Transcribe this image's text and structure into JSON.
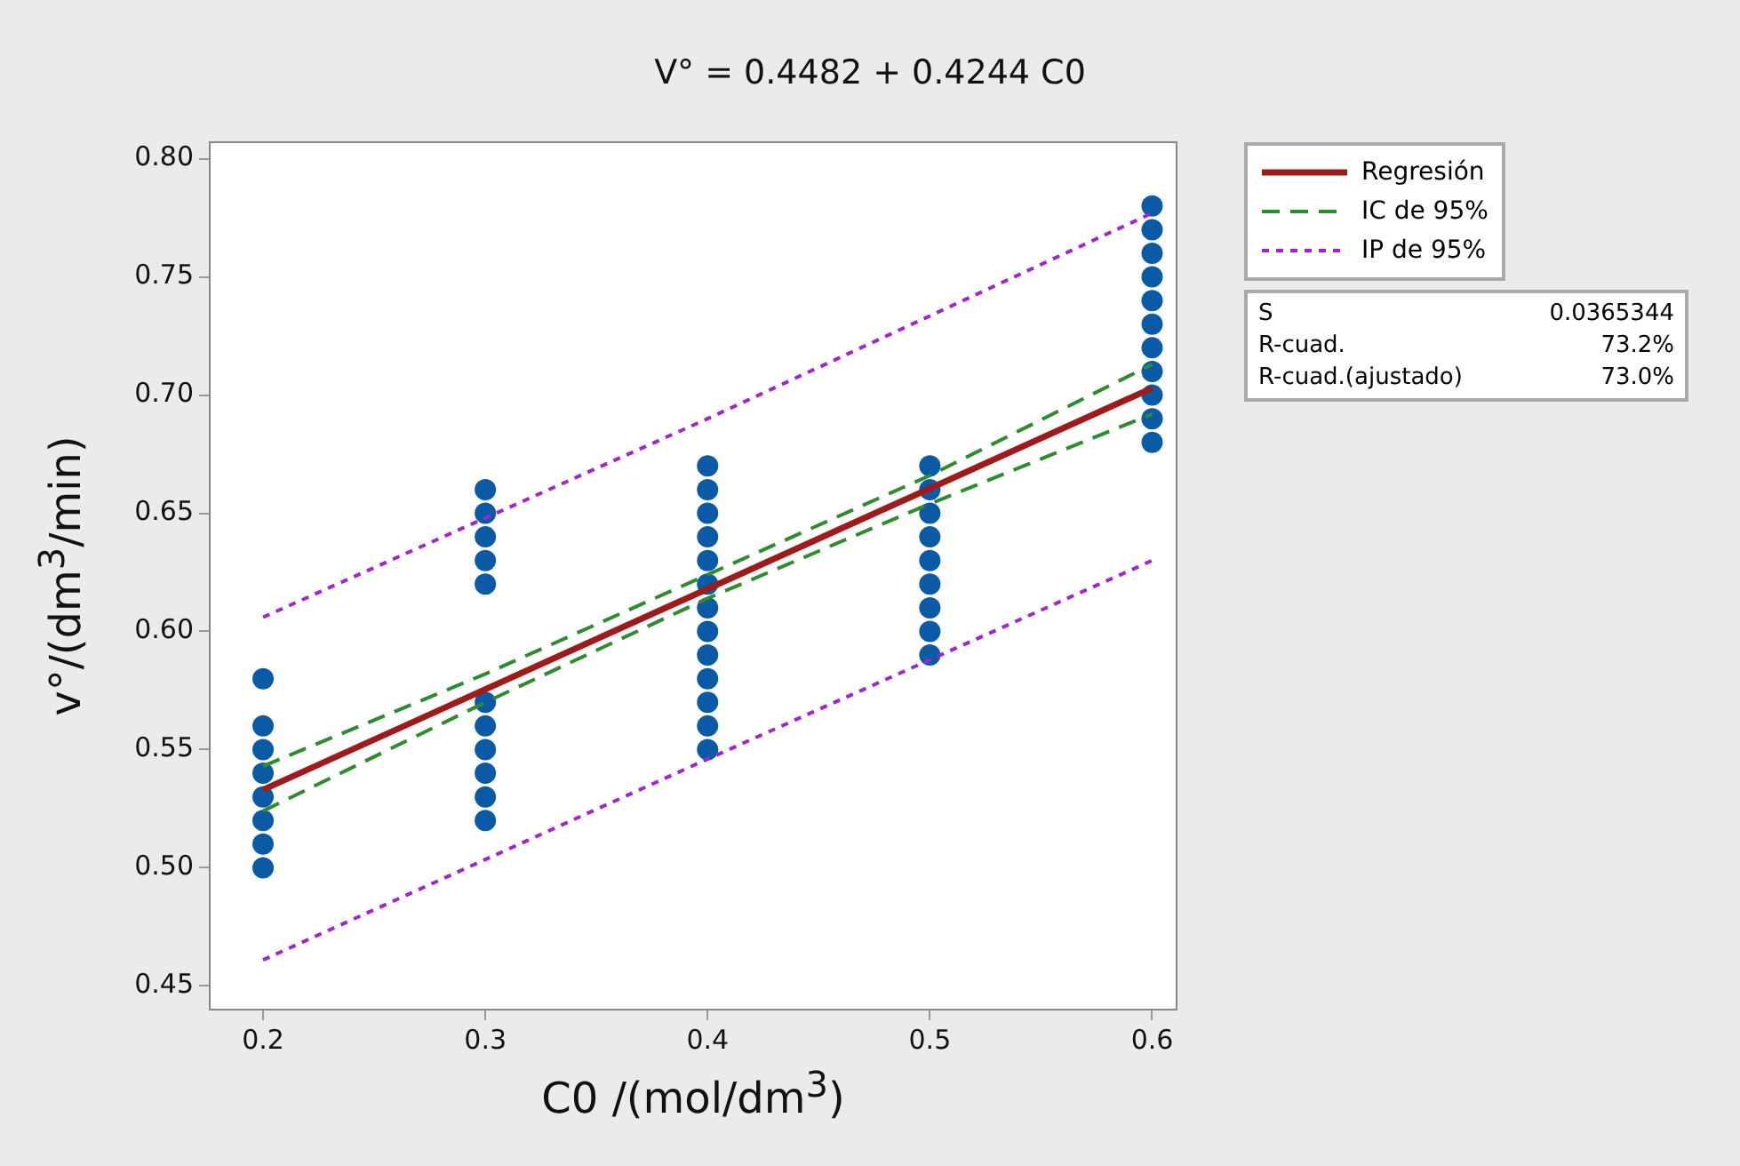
{
  "chart_data": {
    "type": "scatter",
    "title": "V° = 0.4482 + 0.4244 C0",
    "xlabel": "C0 /(mol/dm$^{3}$)",
    "ylabel": "v°/(dm$^{3}$/min)",
    "xlim": [
      0.176,
      0.611
    ],
    "xticks": [
      {
        "value": 0.2,
        "label": "0.2"
      },
      {
        "value": 0.3,
        "label": "0.3"
      },
      {
        "value": 0.4,
        "label": "0.4"
      },
      {
        "value": 0.5,
        "label": "0.5"
      },
      {
        "value": 0.6,
        "label": "0.6"
      }
    ],
    "ylim": [
      0.44,
      0.807
    ],
    "yticks": [
      {
        "value": 0.45,
        "label": "0.45"
      },
      {
        "value": 0.5,
        "label": "0.50"
      },
      {
        "value": 0.55,
        "label": "0.55"
      },
      {
        "value": 0.6,
        "label": "0.60"
      },
      {
        "value": 0.65,
        "label": "0.65"
      },
      {
        "value": 0.7,
        "label": "0.70"
      },
      {
        "value": 0.75,
        "label": "0.75"
      },
      {
        "value": 0.8,
        "label": "0.80"
      }
    ],
    "grid": false,
    "legend": "right",
    "series": [
      {
        "type": "scatter",
        "color": "#0b5aa6",
        "marker": "circle",
        "x": [
          0.2,
          0.2,
          0.2,
          0.2,
          0.2,
          0.2,
          0.2,
          0.2,
          0.3,
          0.3,
          0.3,
          0.3,
          0.3,
          0.3,
          0.3,
          0.3,
          0.3,
          0.3,
          0.3,
          0.4,
          0.4,
          0.4,
          0.4,
          0.4,
          0.4,
          0.4,
          0.4,
          0.4,
          0.4,
          0.4,
          0.4,
          0.4,
          0.5,
          0.5,
          0.5,
          0.5,
          0.5,
          0.5,
          0.5,
          0.5,
          0.5,
          0.6,
          0.6,
          0.6,
          0.6,
          0.6,
          0.6,
          0.6,
          0.6,
          0.6,
          0.6,
          0.6
        ],
        "values": [
          0.58,
          0.56,
          0.55,
          0.54,
          0.53,
          0.52,
          0.51,
          0.5,
          0.66,
          0.65,
          0.64,
          0.63,
          0.62,
          0.57,
          0.56,
          0.55,
          0.54,
          0.53,
          0.52,
          0.67,
          0.66,
          0.65,
          0.64,
          0.63,
          0.62,
          0.61,
          0.6,
          0.59,
          0.58,
          0.57,
          0.56,
          0.55,
          0.67,
          0.66,
          0.65,
          0.64,
          0.63,
          0.62,
          0.61,
          0.6,
          0.59,
          0.78,
          0.77,
          0.76,
          0.75,
          0.74,
          0.73,
          0.72,
          0.71,
          0.7,
          0.69,
          0.68
        ]
      },
      {
        "name": "Regresión",
        "type": "line",
        "color": "#9e1b1b",
        "marker": "none",
        "line_style": "solid",
        "x": [
          0.2,
          0.6
        ],
        "values": [
          0.533,
          0.703
        ]
      },
      {
        "name": "IC de 95%",
        "type": "line",
        "color": "#2e8b2e",
        "marker": "none",
        "line_style": "dashed",
        "x": [
          0.2,
          0.3,
          0.4,
          0.5,
          0.6
        ],
        "values": [
          0.543,
          0.582,
          0.624,
          0.666,
          0.713
        ]
      },
      {
        "type": "line",
        "color": "#2e8b2e",
        "marker": "none",
        "line_style": "dashed",
        "x": [
          0.2,
          0.3,
          0.4,
          0.5,
          0.6
        ],
        "values": [
          0.524,
          0.57,
          0.614,
          0.654,
          0.692
        ]
      },
      {
        "name": "IP de 95%",
        "type": "line",
        "color": "#a025d0",
        "marker": "none",
        "line_style": "dotted",
        "x": [
          0.2,
          0.4,
          0.6
        ],
        "values": [
          0.606,
          0.69,
          0.777
        ]
      },
      {
        "type": "line",
        "color": "#a025d0",
        "marker": "none",
        "line_style": "dotted",
        "x": [
          0.2,
          0.4,
          0.6
        ],
        "values": [
          0.461,
          0.546,
          0.63
        ]
      }
    ],
    "annotations": [
      "S",
      "0.0365344",
      "R-cuad.",
      "73.2%",
      "R-cuad.(ajustado)",
      "73.0%"
    ]
  }
}
